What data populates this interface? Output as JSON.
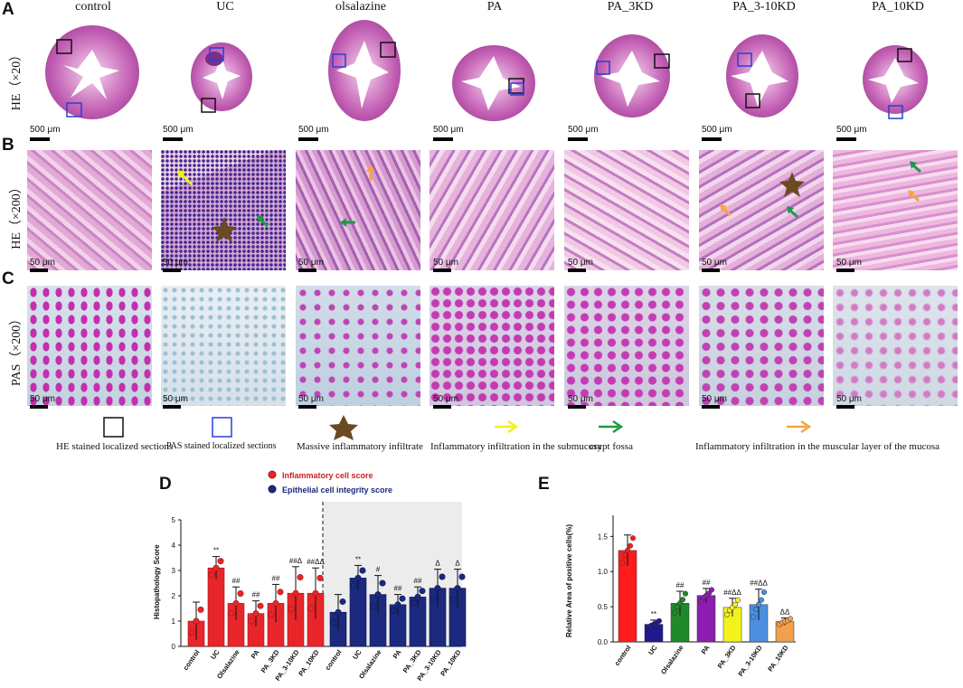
{
  "panels": {
    "A": "A",
    "B": "B",
    "C": "C",
    "D": "D",
    "E": "E"
  },
  "columns": [
    "control",
    "UC",
    "olsalazine",
    "PA",
    "PA_3KD",
    "PA_3-10KD",
    "PA_10KD"
  ],
  "rows": {
    "he20": "HE（×20）",
    "he200": "HE（×200）",
    "pas200": "PAS（×200）"
  },
  "scale": {
    "low": "500 μm",
    "high": "50 μm"
  },
  "legend": {
    "he_box": "HE stained localized sections",
    "pas_box": "PAS stained localized sections",
    "star": "Massive inflammatory infiltrate",
    "yellow": "Inflammatory infiltration in the submucosa",
    "green": "crypt fossa",
    "orange": "Inflammatory infiltration in the muscular layer of the mucosa"
  },
  "colors": {
    "he_box": "#111111",
    "pas_box": "#2a3fd6",
    "star": "#6b4a22",
    "yellow": "#f2ee1c",
    "green": "#1e9a45",
    "orange": "#f6a444",
    "red_series": "#e8262a",
    "blue_series": "#1b2a7e"
  },
  "chart_data": [
    {
      "type": "bar",
      "panel": "D",
      "ylabel": "Histopathology Score",
      "ylim": [
        0,
        5
      ],
      "yticks": [
        "0",
        "1",
        "2",
        "3",
        "4",
        "5"
      ],
      "categories": [
        "control",
        "UC",
        "Olsalazine",
        "PA",
        "PA_3KD",
        "PA_3-10KD",
        "PA_10KD"
      ],
      "series": [
        {
          "name": "Inflammatory cell score",
          "values": [
            1.0,
            3.1,
            1.7,
            1.3,
            1.7,
            2.1,
            2.1
          ],
          "errors": [
            0.75,
            0.45,
            0.65,
            0.5,
            0.75,
            1.05,
            1.0
          ],
          "marks": [
            "",
            "**",
            "##",
            "##",
            "##",
            "##Δ",
            "##ΔΔ"
          ]
        },
        {
          "name": "Epithelial cell integrity score",
          "values": [
            1.35,
            2.7,
            2.05,
            1.65,
            1.95,
            2.3,
            2.3
          ],
          "errors": [
            0.7,
            0.5,
            0.75,
            0.4,
            0.4,
            0.75,
            0.75
          ],
          "marks": [
            "",
            "**",
            "#",
            "##",
            "##",
            "Δ",
            "Δ"
          ]
        }
      ]
    },
    {
      "type": "bar",
      "panel": "E",
      "ylabel": "Relative Area of positive cells(%)",
      "ylim": [
        0,
        1.8
      ],
      "yticks": [
        "0.0",
        "0.5",
        "1.0",
        "1.5"
      ],
      "categories": [
        "control",
        "UC",
        "Olsalazine",
        "PA",
        "PA_3KD",
        "PA_3-10KD",
        "PA_10KD"
      ],
      "values": [
        1.3,
        0.25,
        0.55,
        0.66,
        0.49,
        0.53,
        0.29
      ],
      "errors": [
        0.22,
        0.06,
        0.17,
        0.1,
        0.13,
        0.22,
        0.05
      ],
      "colors": [
        "#ff1c1c",
        "#1c1a8c",
        "#1f8a2a",
        "#8b1eb0",
        "#f4f21c",
        "#4b8fe0",
        "#f4a04a"
      ],
      "marks": [
        "",
        "**",
        "##",
        "##",
        "##ΔΔ",
        "##ΔΔ",
        "ΔΔ"
      ]
    }
  ]
}
